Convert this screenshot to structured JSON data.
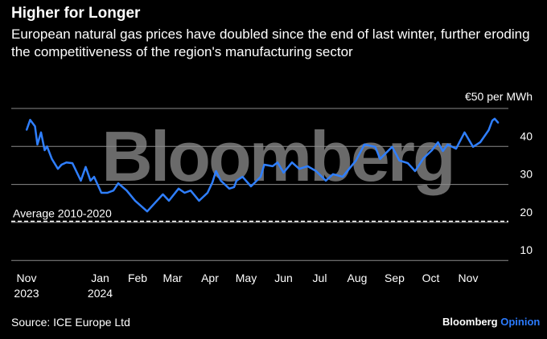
{
  "header": {
    "title": "Higher for Longer",
    "subtitle": "European natural gas prices have doubled since the end of last winter, further eroding the competitiveness of the region's manufacturing sector"
  },
  "footer": {
    "source": "Source: ICE Europe Ltd",
    "brand": "Bloomberg",
    "brand_accent": "Opinion"
  },
  "watermark": "Bloomberg",
  "chart_data": {
    "type": "line",
    "title": "Higher for Longer",
    "ylabel": "€50 per MWh",
    "unit_label": "€50 per MWh",
    "ylim": [
      10,
      50
    ],
    "yticks": [
      10,
      20,
      30,
      40,
      50
    ],
    "ytick_labels": [
      "10",
      "20",
      "30",
      "40"
    ],
    "xticks": [
      {
        "date": "2023-11-01",
        "label": "Nov",
        "label2": "2023"
      },
      {
        "date": "2024-01-01",
        "label": "Jan",
        "label2": "2024"
      },
      {
        "date": "2024-02-01",
        "label": "Feb"
      },
      {
        "date": "2024-03-01",
        "label": "Mar"
      },
      {
        "date": "2024-04-01",
        "label": "Apr"
      },
      {
        "date": "2024-05-01",
        "label": "May"
      },
      {
        "date": "2024-06-01",
        "label": "Jun"
      },
      {
        "date": "2024-07-01",
        "label": "Jul"
      },
      {
        "date": "2024-08-01",
        "label": "Aug"
      },
      {
        "date": "2024-09-01",
        "label": "Sep"
      },
      {
        "date": "2024-10-01",
        "label": "Oct"
      },
      {
        "date": "2024-11-01",
        "label": "Nov"
      }
    ],
    "grid": true,
    "line_color": "#2f7fff",
    "reference_line": {
      "label": "Average 2010-2020",
      "value": 20.3
    },
    "x": [
      "2023-11-01",
      "2023-11-04",
      "2023-11-08",
      "2023-11-10",
      "2023-11-13",
      "2023-11-16",
      "2023-11-18",
      "2023-11-22",
      "2023-11-27",
      "2023-11-30",
      "2023-12-04",
      "2023-12-09",
      "2023-12-16",
      "2023-12-20",
      "2023-12-24",
      "2023-12-27",
      "2024-01-02",
      "2024-01-07",
      "2024-01-12",
      "2024-01-16",
      "2024-01-23",
      "2024-01-30",
      "2024-02-09",
      "2024-02-15",
      "2024-02-22",
      "2024-02-27",
      "2024-03-06",
      "2024-03-11",
      "2024-03-16",
      "2024-03-23",
      "2024-03-30",
      "2024-04-03",
      "2024-04-06",
      "2024-04-10",
      "2024-04-17",
      "2024-04-21",
      "2024-04-23",
      "2024-04-28",
      "2024-05-05",
      "2024-05-13",
      "2024-05-16",
      "2024-05-23",
      "2024-05-27",
      "2024-06-01",
      "2024-06-08",
      "2024-06-14",
      "2024-06-21",
      "2024-06-28",
      "2024-07-06",
      "2024-07-12",
      "2024-07-20",
      "2024-07-31",
      "2024-08-07",
      "2024-08-16",
      "2024-08-20",
      "2024-08-30",
      "2024-09-05",
      "2024-09-12",
      "2024-09-18",
      "2024-09-25",
      "2024-10-02",
      "2024-10-07",
      "2024-10-11",
      "2024-10-15",
      "2024-10-22",
      "2024-10-29",
      "2024-11-05",
      "2024-11-11",
      "2024-11-18",
      "2024-11-21",
      "2024-11-23",
      "2024-11-26"
    ],
    "values": [
      44.3,
      47,
      45.3,
      40.5,
      43.7,
      39,
      40,
      36.7,
      34.1,
      35.2,
      35.8,
      35.6,
      31,
      34.6,
      31,
      32,
      27.8,
      27.8,
      28.4,
      30.3,
      28.4,
      25.7,
      22.9,
      25,
      27.4,
      25.7,
      28.9,
      27.8,
      28.4,
      25.7,
      27.8,
      30.5,
      33.5,
      31,
      28.9,
      29.3,
      31,
      32,
      29.5,
      32,
      35.2,
      34.8,
      35.8,
      33.1,
      35.8,
      34.1,
      34.8,
      33.5,
      31,
      32.7,
      32,
      36.3,
      40.5,
      39.9,
      36.7,
      39.9,
      36.3,
      35.6,
      33.5,
      36.9,
      39,
      41.1,
      38.8,
      40.5,
      39.4,
      43.7,
      39.9,
      41.1,
      44.3,
      46.8,
      47.3,
      46.2
    ]
  }
}
